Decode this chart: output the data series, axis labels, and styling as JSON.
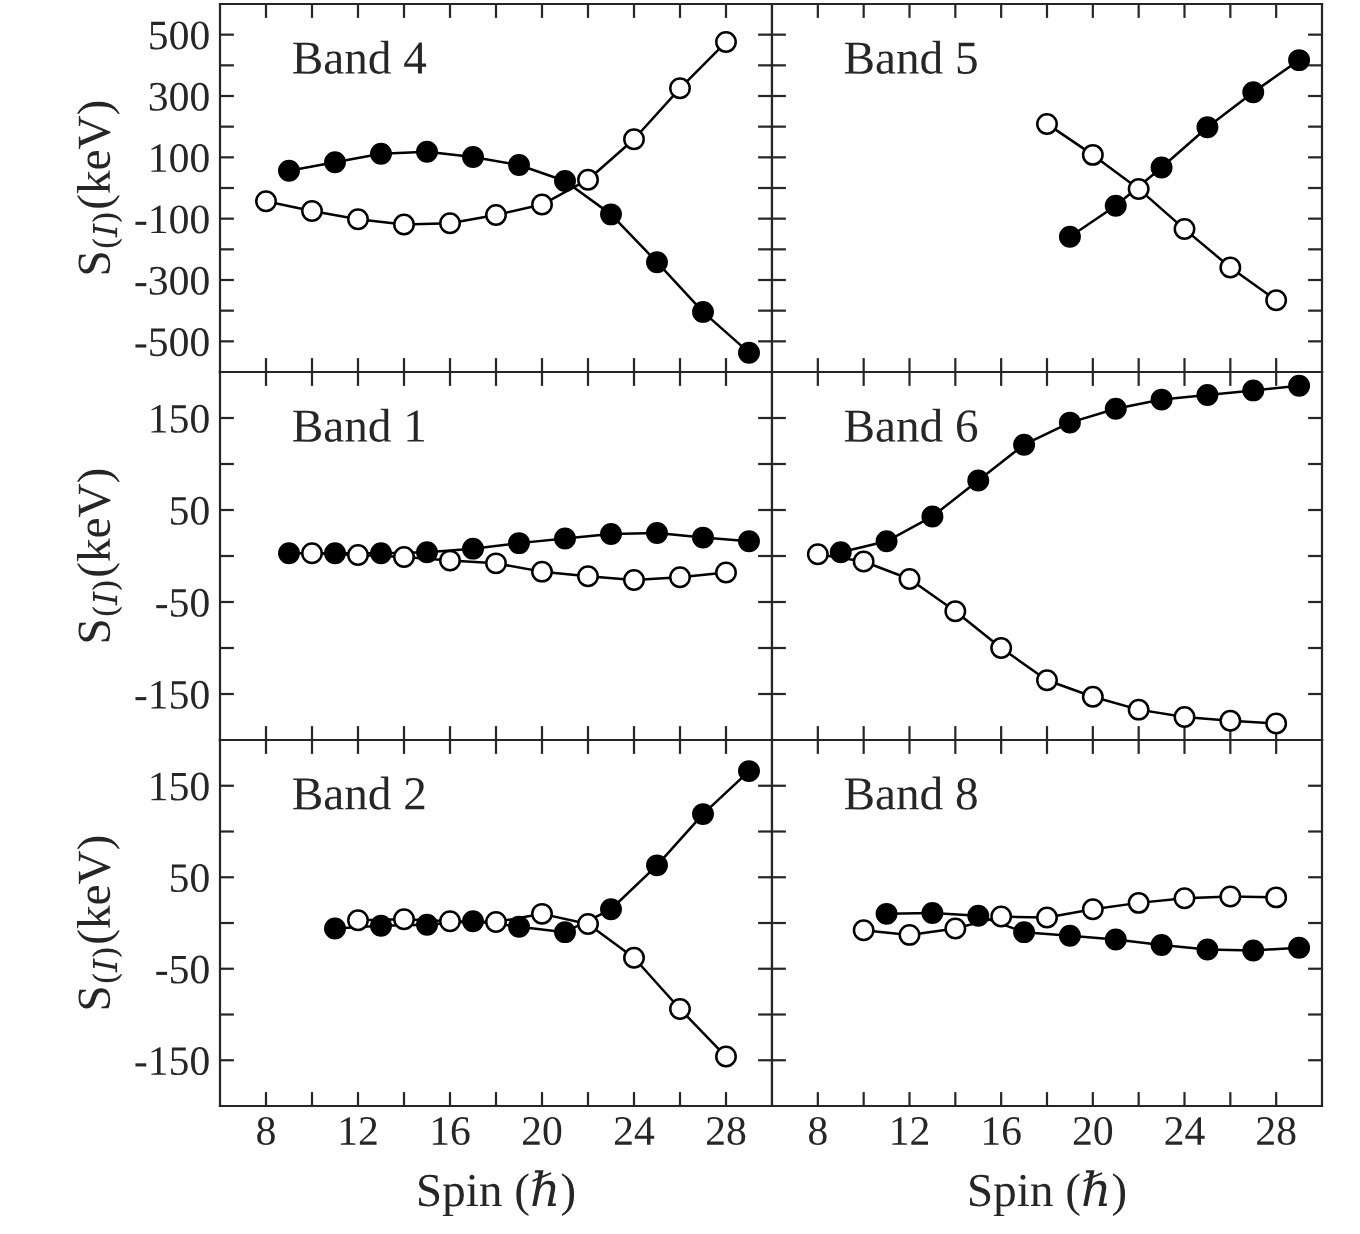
{
  "chart_data": [
    {
      "type": "line",
      "title": "Band 4",
      "ylabel": "S$_{(I)}$(keV)",
      "xlim": [
        6,
        30
      ],
      "ylim": [
        -600,
        600
      ],
      "marker": "circle",
      "line_style": "solid",
      "grid": false,
      "legend": false,
      "tick_labels": "y",
      "xticks": [
        {
          "value": 8,
          "label": null
        },
        {
          "value": 10,
          "label": null
        },
        {
          "value": 12,
          "label": null
        },
        {
          "value": 14,
          "label": null
        },
        {
          "value": 16,
          "label": null
        },
        {
          "value": 18,
          "label": null
        },
        {
          "value": 20,
          "label": null
        },
        {
          "value": 22,
          "label": null
        },
        {
          "value": 24,
          "label": null
        },
        {
          "value": 26,
          "label": null
        },
        {
          "value": 28,
          "label": null
        }
      ],
      "yticks": [
        500,
        {
          "value": 400,
          "label": null
        },
        300,
        {
          "value": 200,
          "label": null
        },
        100,
        {
          "value": 0,
          "label": null
        },
        {
          "value": -100,
          "label": "-100"
        },
        {
          "value": -200,
          "label": null
        },
        {
          "value": -300,
          "label": "-300"
        },
        {
          "value": -400,
          "label": null
        },
        {
          "value": -500,
          "label": "-500"
        }
      ],
      "series": [
        {
          "color": "#000000",
          "x": [
            9,
            11,
            13,
            15,
            17,
            19,
            21,
            23,
            25,
            27,
            29
          ],
          "values": [
            56,
            84,
            112,
            118,
            101,
            75,
            23,
            -86,
            -242,
            -404,
            -537
          ]
        },
        {
          "color": "#ffffff",
          "x": [
            8,
            10,
            12,
            14,
            16,
            18,
            20,
            22,
            24,
            26,
            28
          ],
          "values": [
            -43,
            -75,
            -102,
            -119,
            -115,
            -88,
            -54,
            27,
            159,
            325,
            476
          ]
        }
      ]
    },
    {
      "type": "line",
      "title": "Band 5",
      "xlim": [
        6,
        30
      ],
      "ylim": [
        -600,
        600
      ],
      "marker": "circle",
      "line_style": "solid",
      "grid": false,
      "legend": false,
      "tick_labels": false,
      "xticks": [
        {
          "value": 8,
          "label": null
        },
        {
          "value": 10,
          "label": null
        },
        {
          "value": 12,
          "label": null
        },
        {
          "value": 14,
          "label": null
        },
        {
          "value": 16,
          "label": null
        },
        {
          "value": 18,
          "label": null
        },
        {
          "value": 20,
          "label": null
        },
        {
          "value": 22,
          "label": null
        },
        {
          "value": 24,
          "label": null
        },
        {
          "value": 26,
          "label": null
        },
        {
          "value": 28,
          "label": null
        }
      ],
      "yticks": [
        {
          "value": 500,
          "label": null
        },
        {
          "value": 400,
          "label": null
        },
        {
          "value": 300,
          "label": null
        },
        {
          "value": 200,
          "label": null
        },
        {
          "value": 100,
          "label": null
        },
        {
          "value": 0,
          "label": null
        },
        {
          "value": -100,
          "label": null
        },
        {
          "value": -200,
          "label": null
        },
        {
          "value": -300,
          "label": null
        },
        {
          "value": -400,
          "label": null
        },
        {
          "value": -500,
          "label": null
        }
      ],
      "series": [
        {
          "color": "#000000",
          "x": [
            19,
            21,
            23,
            25,
            27,
            29
          ],
          "values": [
            -159,
            -58,
            67,
            198,
            312,
            417
          ]
        },
        {
          "color": "#ffffff",
          "x": [
            18,
            20,
            22,
            24,
            26,
            28
          ],
          "values": [
            209,
            108,
            -3,
            -134,
            -259,
            -366
          ]
        }
      ]
    },
    {
      "type": "line",
      "title": "Band 1",
      "ylabel": "S$_{(I)}$(keV)",
      "xlim": [
        6,
        30
      ],
      "ylim": [
        -200,
        200
      ],
      "marker": "circle",
      "line_style": "solid",
      "grid": false,
      "legend": false,
      "tick_labels": "y",
      "xticks": [
        {
          "value": 8,
          "label": null
        },
        {
          "value": 10,
          "label": null
        },
        {
          "value": 12,
          "label": null
        },
        {
          "value": 14,
          "label": null
        },
        {
          "value": 16,
          "label": null
        },
        {
          "value": 18,
          "label": null
        },
        {
          "value": 20,
          "label": null
        },
        {
          "value": 22,
          "label": null
        },
        {
          "value": 24,
          "label": null
        },
        {
          "value": 26,
          "label": null
        },
        {
          "value": 28,
          "label": null
        }
      ],
      "yticks": [
        150,
        {
          "value": 100,
          "label": null
        },
        50,
        {
          "value": 0,
          "label": null
        },
        {
          "value": -50,
          "label": "-50"
        },
        {
          "value": -100,
          "label": null
        },
        {
          "value": -150,
          "label": "-150"
        }
      ],
      "series": [
        {
          "color": "#000000",
          "x": [
            9,
            11,
            13,
            15,
            17,
            19,
            21,
            23,
            25,
            27,
            29
          ],
          "values": [
            3,
            3,
            3,
            4,
            8,
            14,
            19,
            24,
            25,
            20,
            16
          ]
        },
        {
          "color": "#ffffff",
          "x": [
            10,
            12,
            14,
            16,
            18,
            20,
            22,
            24,
            26,
            28
          ],
          "values": [
            3,
            1,
            -1,
            -5,
            -8,
            -17,
            -22,
            -26,
            -23,
            -18
          ]
        }
      ]
    },
    {
      "type": "line",
      "title": "Band 6",
      "xlim": [
        6,
        30
      ],
      "ylim": [
        -200,
        200
      ],
      "marker": "circle",
      "line_style": "solid",
      "grid": false,
      "legend": false,
      "tick_labels": false,
      "xticks": [
        {
          "value": 8,
          "label": null
        },
        {
          "value": 10,
          "label": null
        },
        {
          "value": 12,
          "label": null
        },
        {
          "value": 14,
          "label": null
        },
        {
          "value": 16,
          "label": null
        },
        {
          "value": 18,
          "label": null
        },
        {
          "value": 20,
          "label": null
        },
        {
          "value": 22,
          "label": null
        },
        {
          "value": 24,
          "label": null
        },
        {
          "value": 26,
          "label": null
        },
        {
          "value": 28,
          "label": null
        }
      ],
      "yticks": [
        {
          "value": 150,
          "label": null
        },
        {
          "value": 100,
          "label": null
        },
        {
          "value": 50,
          "label": null
        },
        {
          "value": 0,
          "label": null
        },
        {
          "value": -50,
          "label": null
        },
        {
          "value": -100,
          "label": null
        },
        {
          "value": -150,
          "label": null
        }
      ],
      "series": [
        {
          "color": "#000000",
          "x": [
            9,
            11,
            13,
            15,
            17,
            19,
            21,
            23,
            25,
            27,
            29
          ],
          "values": [
            4,
            16,
            43,
            82,
            121,
            145,
            160,
            170,
            175,
            180,
            185
          ]
        },
        {
          "color": "#ffffff",
          "x": [
            8,
            10,
            12,
            14,
            16,
            18,
            20,
            22,
            24,
            26,
            28
          ],
          "values": [
            2,
            -6,
            -25,
            -60,
            -100,
            -135,
            -153,
            -167,
            -175,
            -179,
            -182
          ]
        }
      ]
    },
    {
      "type": "line",
      "title": "Band 2",
      "ylabel": "S$_{(I)}$(keV)",
      "xlabel": "Spin (ℏ)",
      "xlim": [
        6,
        30
      ],
      "ylim": [
        -200,
        200
      ],
      "marker": "circle",
      "line_style": "solid",
      "grid": false,
      "legend": false,
      "xticks": [
        8,
        {
          "value": 10,
          "label": null
        },
        12,
        {
          "value": 14,
          "label": null
        },
        16,
        {
          "value": 18,
          "label": null
        },
        20,
        {
          "value": 22,
          "label": null
        },
        24,
        {
          "value": 26,
          "label": null
        },
        28
      ],
      "yticks": [
        150,
        {
          "value": 100,
          "label": null
        },
        50,
        {
          "value": 0,
          "label": null
        },
        {
          "value": -50,
          "label": "-50"
        },
        {
          "value": -100,
          "label": null
        },
        {
          "value": -150,
          "label": "-150"
        }
      ],
      "series": [
        {
          "color": "#000000",
          "x": [
            11,
            13,
            15,
            17,
            19,
            21,
            23,
            25,
            27,
            29
          ],
          "values": [
            -6,
            -3,
            -2,
            2,
            -4,
            -10,
            15,
            63,
            119,
            166
          ]
        },
        {
          "color": "#ffffff",
          "x": [
            12,
            14,
            16,
            18,
            20,
            22,
            24,
            26,
            28
          ],
          "values": [
            3,
            4,
            2,
            1,
            10,
            -1,
            -38,
            -94,
            -146
          ]
        }
      ]
    },
    {
      "type": "line",
      "title": "Band 8",
      "xlabel": "Spin (ℏ)",
      "xlim": [
        6,
        30
      ],
      "ylim": [
        -200,
        200
      ],
      "marker": "circle",
      "line_style": "solid",
      "grid": false,
      "legend": false,
      "tick_labels": "x",
      "xticks": [
        8,
        {
          "value": 10,
          "label": null
        },
        12,
        {
          "value": 14,
          "label": null
        },
        16,
        {
          "value": 18,
          "label": null
        },
        20,
        {
          "value": 22,
          "label": null
        },
        24,
        {
          "value": 26,
          "label": null
        },
        28
      ],
      "yticks": [
        {
          "value": 150,
          "label": null
        },
        {
          "value": 100,
          "label": null
        },
        {
          "value": 50,
          "label": null
        },
        {
          "value": 0,
          "label": null
        },
        {
          "value": -50,
          "label": null
        },
        {
          "value": -100,
          "label": null
        },
        {
          "value": -150,
          "label": null
        }
      ],
      "series": [
        {
          "color": "#000000",
          "x": [
            11,
            13,
            15,
            17,
            19,
            21,
            23,
            25,
            27,
            29
          ],
          "values": [
            10,
            11,
            8,
            -10,
            -14,
            -18,
            -24,
            -29,
            -30,
            -27
          ]
        },
        {
          "color": "#ffffff",
          "x": [
            10,
            12,
            14,
            16,
            18,
            20,
            22,
            24,
            26,
            28
          ],
          "values": [
            -8,
            -13,
            -6,
            7,
            6,
            15,
            22,
            27,
            29,
            28
          ]
        }
      ]
    }
  ]
}
